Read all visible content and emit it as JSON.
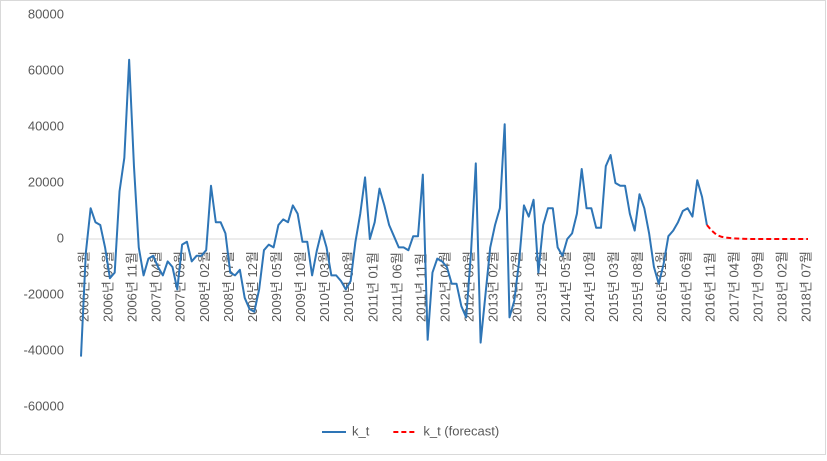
{
  "chart_data": {
    "type": "line",
    "categories": [
      "2006년 01월",
      null,
      null,
      null,
      null,
      "2006년 06월",
      null,
      null,
      null,
      null,
      "2006년 11월",
      null,
      null,
      null,
      null,
      "2007년 04월",
      null,
      null,
      null,
      null,
      "2007년 09월",
      null,
      null,
      null,
      null,
      "2008년 02월",
      null,
      null,
      null,
      null,
      "2008년 07월",
      null,
      null,
      null,
      null,
      "2008년 12월",
      null,
      null,
      null,
      null,
      "2009년 05월",
      null,
      null,
      null,
      null,
      "2009년 10월",
      null,
      null,
      null,
      null,
      "2010년 03월",
      null,
      null,
      null,
      null,
      "2010년 08월",
      null,
      null,
      null,
      null,
      "2011년 01월",
      null,
      null,
      null,
      null,
      "2011년 06월",
      null,
      null,
      null,
      null,
      "2011년 11월",
      null,
      null,
      null,
      null,
      "2012년 04월",
      null,
      null,
      null,
      null,
      "2012년 09월",
      null,
      null,
      null,
      null,
      "2013년 02월",
      null,
      null,
      null,
      null,
      "2013년 07월",
      null,
      null,
      null,
      null,
      "2013년 12월",
      null,
      null,
      null,
      null,
      "2014년 05월",
      null,
      null,
      null,
      null,
      "2014년 10월",
      null,
      null,
      null,
      null,
      "2015년 03월",
      null,
      null,
      null,
      null,
      "2015년 08월",
      null,
      null,
      null,
      null,
      "2016년 01월",
      null,
      null,
      null,
      null,
      "2016년 06월",
      null,
      null,
      null,
      null,
      "2016년 11월",
      null,
      null,
      null,
      null,
      "2017년 04월",
      null,
      null,
      null,
      null,
      "2017년 09월",
      null,
      null,
      null,
      null,
      "2018년 02월",
      null,
      null,
      null,
      null,
      "2018년 07월",
      null
    ],
    "series": [
      {
        "name": "k_t",
        "color": "#2e75b6",
        "dashed": false,
        "values": [
          -42000,
          -5000,
          11000,
          6000,
          5000,
          -3000,
          -14000,
          -12000,
          17000,
          29000,
          64000,
          26000,
          -3000,
          -13000,
          -7000,
          -6000,
          -10000,
          -13000,
          -8000,
          -10000,
          -18000,
          -2000,
          -1000,
          -8000,
          -6000,
          -6000,
          -4000,
          19000,
          6000,
          6000,
          2000,
          -12000,
          -13000,
          -11000,
          -21000,
          -25000,
          -26000,
          -18000,
          -4000,
          -2000,
          -3000,
          5000,
          7000,
          6000,
          12000,
          9000,
          -1000,
          -1000,
          -13000,
          -4000,
          3000,
          -3000,
          -13000,
          -13000,
          -15000,
          -18000,
          -15000,
          -1000,
          9000,
          22000,
          0,
          6000,
          18000,
          12000,
          5000,
          1000,
          -3000,
          -3000,
          -4000,
          1000,
          1000,
          23000,
          -36000,
          -12000,
          -7000,
          -8000,
          -10000,
          -16000,
          -16000,
          -24000,
          -28000,
          -5000,
          27000,
          -37000,
          -20000,
          -3000,
          5000,
          11000,
          41000,
          -28000,
          -22000,
          -8000,
          12000,
          8000,
          14000,
          -12000,
          5000,
          11000,
          11000,
          -3000,
          -6000,
          0,
          2000,
          9000,
          25000,
          11000,
          11000,
          4000,
          4000,
          26000,
          30000,
          20000,
          19000,
          19000,
          9000,
          3000,
          16000,
          11000,
          2000,
          -10000,
          -16000,
          -9000,
          1000,
          3000,
          6000,
          10000,
          11000,
          8000,
          21000,
          15000,
          5000,
          null,
          null,
          null,
          null,
          null,
          null,
          null,
          null,
          null,
          null,
          null,
          null,
          null,
          null,
          null,
          null,
          null,
          null,
          null,
          null,
          null
        ]
      },
      {
        "name": "k_t (forecast)",
        "color": "#ff0000",
        "dashed": true,
        "values": [
          null,
          null,
          null,
          null,
          null,
          null,
          null,
          null,
          null,
          null,
          null,
          null,
          null,
          null,
          null,
          null,
          null,
          null,
          null,
          null,
          null,
          null,
          null,
          null,
          null,
          null,
          null,
          null,
          null,
          null,
          null,
          null,
          null,
          null,
          null,
          null,
          null,
          null,
          null,
          null,
          null,
          null,
          null,
          null,
          null,
          null,
          null,
          null,
          null,
          null,
          null,
          null,
          null,
          null,
          null,
          null,
          null,
          null,
          null,
          null,
          null,
          null,
          null,
          null,
          null,
          null,
          null,
          null,
          null,
          null,
          null,
          null,
          null,
          null,
          null,
          null,
          null,
          null,
          null,
          null,
          null,
          null,
          null,
          null,
          null,
          null,
          null,
          null,
          null,
          null,
          null,
          null,
          null,
          null,
          null,
          null,
          null,
          null,
          null,
          null,
          null,
          null,
          null,
          null,
          null,
          null,
          null,
          null,
          null,
          null,
          null,
          null,
          null,
          null,
          null,
          null,
          null,
          null,
          null,
          null,
          null,
          null,
          null,
          null,
          null,
          null,
          null,
          null,
          null,
          null,
          5000,
          3000,
          1500,
          800,
          500,
          300,
          200,
          100,
          50,
          0,
          0,
          0,
          0,
          0,
          0,
          0,
          0,
          0,
          0,
          0,
          0,
          0
        ]
      }
    ],
    "ylim": [
      -60000,
      80000
    ],
    "yticks": [
      -60000,
      -40000,
      -20000,
      0,
      20000,
      40000,
      60000,
      80000
    ],
    "grid": false,
    "legend": "bottom"
  }
}
